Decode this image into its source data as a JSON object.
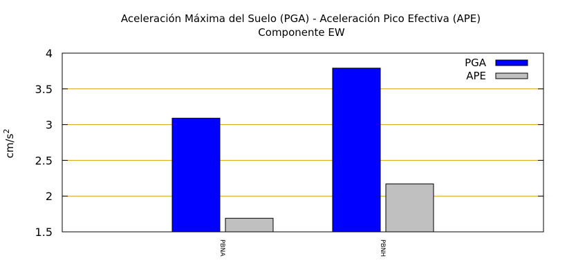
{
  "chart_data": {
    "type": "bar",
    "title": "Aceleración Máxima del Suelo (PGA) -  Aceleración Pico Efectiva (APE)",
    "subtitle": "Componente EW",
    "xlabel": "",
    "ylabel": "cm/s",
    "ylabel_superscript": "2",
    "ylim": [
      1.5,
      4
    ],
    "yticks": [
      "1.5",
      "2",
      "2.5",
      "3",
      "3.5",
      "4"
    ],
    "ytick_values": [
      1.5,
      2,
      2.5,
      3,
      3.5,
      4
    ],
    "categories": [
      "PBNA",
      "PBNH"
    ],
    "series": [
      {
        "name": "PGA",
        "values": [
          3.09,
          3.79
        ],
        "color": "#0000ff"
      },
      {
        "name": "APE",
        "values": [
          1.69,
          2.17
        ],
        "color": "#c0c0c0"
      }
    ],
    "grid": {
      "y": true,
      "color": "#d4a000"
    },
    "legend_position": "top-right"
  }
}
